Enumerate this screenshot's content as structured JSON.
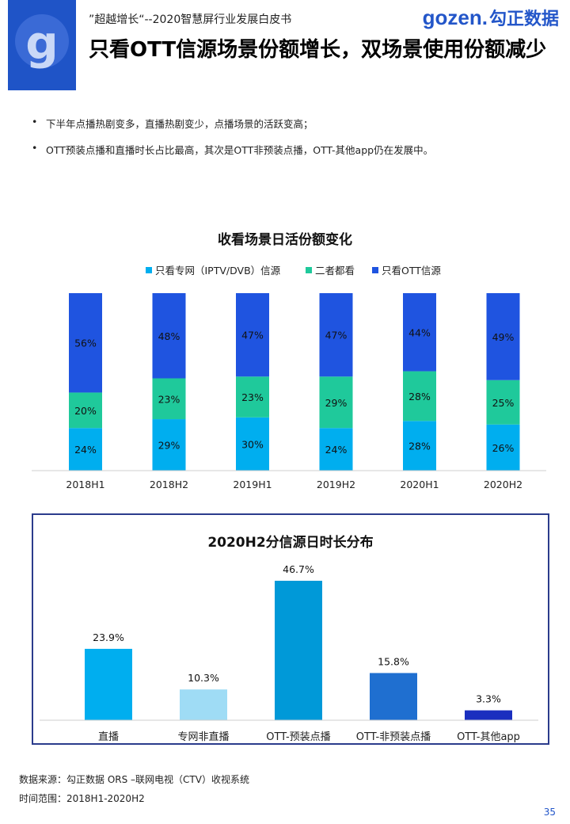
{
  "header": {
    "subtitle": "”超越增长“--2020智慧屏行业发展白皮书",
    "logo_letter": "g",
    "brand_en": "gozen.",
    "brand_cn": "勾正数据"
  },
  "title": "只看OTT信源场景份额增长，双场景使用份额减少",
  "bullets": [
    "下半年点播热剧变多，直播热剧变少，点播场景的活跃变高；",
    "OTT预装点播和直播时长占比最高，其次是OTT非预装点播，OTT-其他app仍在发展中。"
  ],
  "chart_data": [
    {
      "type": "bar",
      "stacked": true,
      "title": "收看场景日活份额变化",
      "categories": [
        "2018H1",
        "2018H2",
        "2019H1",
        "2019H2",
        "2020H1",
        "2020H2"
      ],
      "series": [
        {
          "name": "只看专网（IPTV/DVB）信源",
          "color": "#00aeef",
          "values": [
            24,
            29,
            30,
            24,
            28,
            26
          ],
          "labels": [
            "24%",
            "29%",
            "30%",
            "24%",
            "28%",
            "26%"
          ]
        },
        {
          "name": "二者都看",
          "color": "#1fc99b",
          "values": [
            20,
            23,
            23,
            29,
            28,
            25
          ],
          "labels": [
            "20%",
            "23%",
            "23%",
            "29%",
            "28%",
            "25%"
          ]
        },
        {
          "name": "只看OTT信源",
          "color": "#1f54e0",
          "values": [
            56,
            48,
            47,
            47,
            44,
            49
          ],
          "labels": [
            "56%",
            "48%",
            "47%",
            "47%",
            "44%",
            "49%"
          ]
        }
      ],
      "legend": "top-center",
      "grid": false
    },
    {
      "type": "bar",
      "title": "2020H2分信源日时长分布",
      "categories": [
        "直播",
        "专网非直播",
        "OTT-预装点播",
        "OTT-非预装点播",
        "OTT-其他app"
      ],
      "values": [
        23.9,
        10.3,
        46.7,
        15.8,
        3.3
      ],
      "labels": [
        "23.9%",
        "10.3%",
        "46.7%",
        "15.8%",
        "3.3%"
      ],
      "colors": [
        "#00aeef",
        "#9fdcf5",
        "#0099d8",
        "#1f6fd0",
        "#1a2fbf"
      ],
      "ylim": [
        0,
        50
      ],
      "grid": false
    }
  ],
  "footer": {
    "source": "数据来源：勾正数据 ORS –联网电视（CTV）收视系统",
    "range": "时间范围：2018H1-2020H2"
  },
  "page_number": "35"
}
